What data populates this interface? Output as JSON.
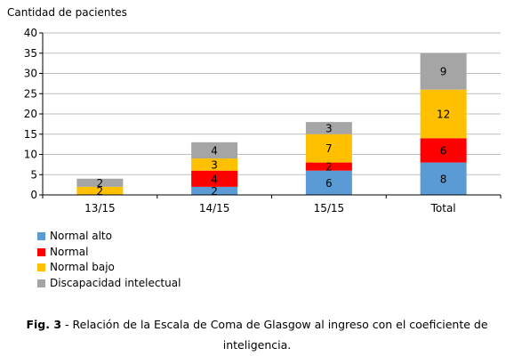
{
  "chart_data": {
    "type": "bar",
    "stacked": true,
    "ylabel": "Cantidad de pacientes",
    "ylim": [
      0,
      40
    ],
    "yticks": [
      0,
      5,
      10,
      15,
      20,
      25,
      30,
      35,
      40
    ],
    "categories": [
      "13/15",
      "14/15",
      "15/15",
      "Total"
    ],
    "series": [
      {
        "name": "Normal alto",
        "color": "#5b9bd5",
        "values": [
          0,
          2,
          6,
          8
        ]
      },
      {
        "name": "Normal",
        "color": "#ff0000",
        "values": [
          0,
          4,
          2,
          6
        ]
      },
      {
        "name": "Normal bajo",
        "color": "#ffc000",
        "values": [
          2,
          3,
          7,
          12
        ]
      },
      {
        "name": "Discapacidad intelectual",
        "color": "#a5a5a5",
        "values": [
          2,
          4,
          3,
          9
        ]
      }
    ],
    "grid": true,
    "legend_position": "bottom-left"
  },
  "caption": {
    "label": "Fig. 3",
    "text": " - Relación de la Escala de Coma de Glasgow al ingreso con el coeficiente de inteligencia."
  }
}
